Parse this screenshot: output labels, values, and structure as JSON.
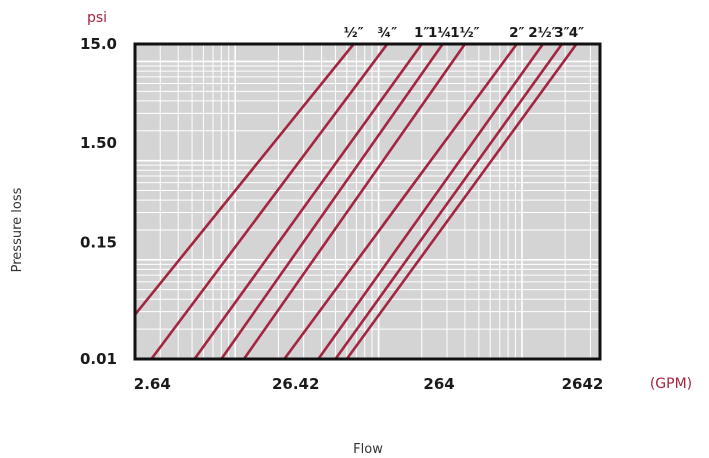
{
  "chart_data": {
    "type": "line",
    "scale": {
      "x": "log",
      "y": "log"
    },
    "grid": true,
    "xlabel": "Flow",
    "ylabel": "Pressure loss",
    "x_unit": "(GPM)",
    "y_unit": "psi",
    "xlim": [
      2.0,
      3500
    ],
    "ylim": [
      0.01,
      15.0
    ],
    "x_ticks": [
      {
        "value": 2.64,
        "label": "2.64"
      },
      {
        "value": 26.42,
        "label": "26.42"
      },
      {
        "value": 264,
        "label": "264"
      },
      {
        "value": 2642,
        "label": "2642"
      }
    ],
    "y_ticks": [
      {
        "value": 0.01,
        "label": "0.01"
      },
      {
        "value": 0.15,
        "label": "0.15"
      },
      {
        "value": 1.5,
        "label": "1.50"
      },
      {
        "value": 15.0,
        "label": "15.0"
      }
    ],
    "series": [
      {
        "name": "½″",
        "x": [
          2.0,
          67
        ],
        "y": [
          0.028,
          15.0
        ]
      },
      {
        "name": "¾″",
        "x": [
          2.6,
          115
        ],
        "y": [
          0.01,
          15.0
        ]
      },
      {
        "name": "1″",
        "x": [
          5.2,
          200
        ],
        "y": [
          0.01,
          15.0
        ]
      },
      {
        "name": "1¼″",
        "x": [
          8.0,
          280
        ],
        "y": [
          0.01,
          15.0
        ]
      },
      {
        "name": "1½″",
        "x": [
          11.5,
          400
        ],
        "y": [
          0.01,
          15.0
        ]
      },
      {
        "name": "2″",
        "x": [
          22,
          920
        ],
        "y": [
          0.01,
          15.0
        ]
      },
      {
        "name": "2½″",
        "x": [
          38,
          1400
        ],
        "y": [
          0.01,
          15.0
        ]
      },
      {
        "name": "3″",
        "x": [
          50,
          1900
        ],
        "y": [
          0.01,
          15.0
        ]
      },
      {
        "name": "4″",
        "x": [
          60,
          2400
        ],
        "y": [
          0.01,
          15.0
        ]
      }
    ]
  },
  "colors": {
    "line": "#a3253f",
    "plot_background": "#d4d4d4",
    "grid": "#ffffff",
    "frame": "#111111",
    "unit_text": "#a3253f"
  }
}
